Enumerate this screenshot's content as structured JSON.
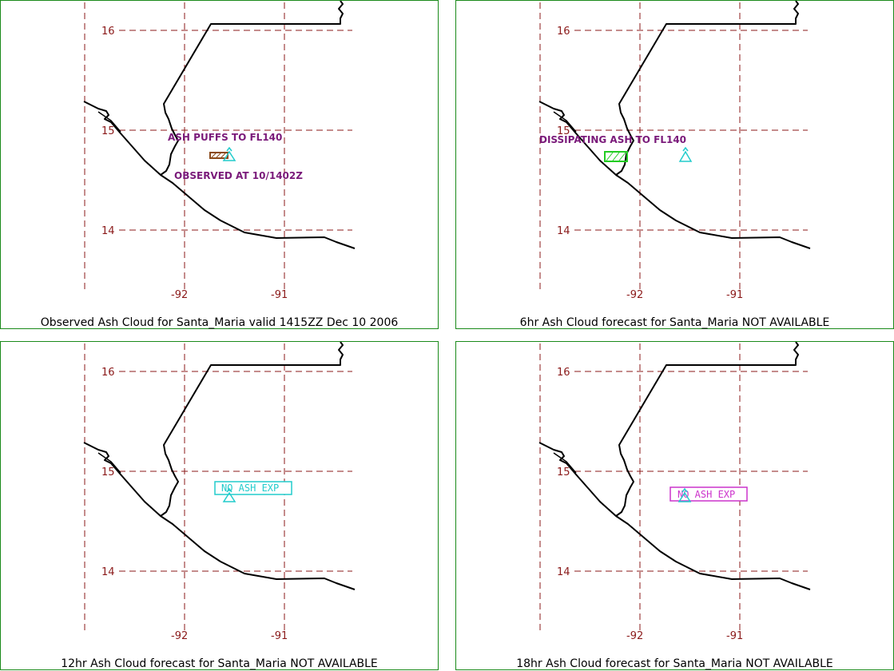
{
  "panels": [
    {
      "caption": "Observed Ash Cloud for Santa_Maria valid 1415ZZ Dec 10 2006",
      "annotations": [
        {
          "text": "ASH PUFFS TO FL140"
        },
        {
          "text": "OBSERVED AT 10/1402Z"
        }
      ]
    },
    {
      "caption": "6hr Ash Cloud forecast for Santa_Maria NOT AVAILABLE",
      "annotations": [
        {
          "text": "DISSIPATING ASH TO FL140"
        }
      ]
    },
    {
      "caption": "12hr Ash Cloud forecast for Santa_Maria NOT AVAILABLE",
      "annotations": [
        {
          "text": "NO ASH EXP"
        }
      ]
    },
    {
      "caption": "18hr Ash Cloud forecast for Santa_Maria NOT AVAILABLE",
      "annotations": [
        {
          "text": "NO ASH EXP"
        }
      ]
    }
  ],
  "lat_labels": [
    "16",
    "15",
    "14"
  ],
  "lon_labels": [
    "-92",
    "-91"
  ],
  "colors": {
    "border": "#1a8a1a",
    "grid": "#8b1a1a",
    "coast": "#000000",
    "observed_text": "#7a1a7a",
    "observed_box": "#8b4a1a",
    "forecast6_box": "#22cc22",
    "forecast12": "#22cccc",
    "forecast18": "#cc33cc",
    "volcano": "#22cccc"
  }
}
